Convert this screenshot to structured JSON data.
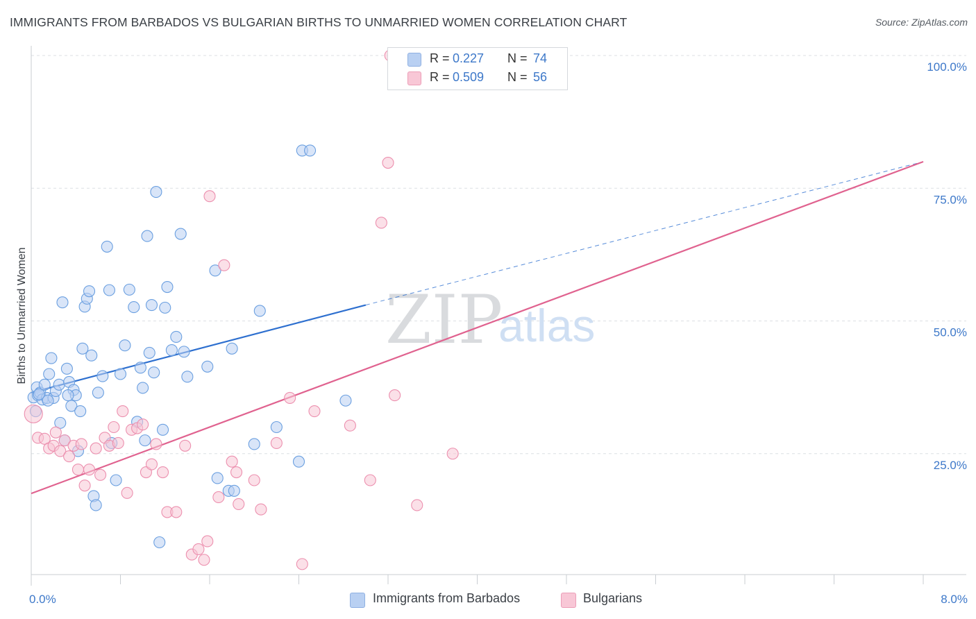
{
  "header": {
    "title": "IMMIGRANTS FROM BARBADOS VS BULGARIAN BIRTHS TO UNMARRIED WOMEN CORRELATION CHART",
    "source": "Source: ZipAtlas.com"
  },
  "watermark": {
    "zip": "ZIP",
    "atlas": "atlas"
  },
  "legend": {
    "rows": [
      {
        "r_key": "R =",
        "r_value": "0.227",
        "n_key": "N =",
        "n_value": "74"
      },
      {
        "r_key": "R =",
        "r_value": "0.509",
        "n_key": "N =",
        "n_value": "56"
      }
    ]
  },
  "colors": {
    "blue": "#6a9fe0",
    "blue_fill": "#b9d0f2",
    "blue_line": "#2d6fcf",
    "pink": "#ec8fae",
    "pink_fill": "#f8c7d6",
    "pink_line": "#e0628f",
    "tick_text": "#3d78c9",
    "grid": "#dcdfe3"
  },
  "chart_data": {
    "type": "scatter",
    "title": "IMMIGRANTS FROM BARBADOS VS BULGARIAN BIRTHS TO UNMARRIED WOMEN CORRELATION CHART",
    "xlabel": "",
    "ylabel": "Births to Unmarried Women",
    "xlim": [
      0,
      8
    ],
    "ylim": [
      0,
      102
    ],
    "x_tick_labels": [
      "0.0%",
      "8.0%"
    ],
    "y_ticks": [
      25,
      50,
      75,
      100
    ],
    "y_tick_labels": [
      "25.0%",
      "50.0%",
      "75.0%",
      "100.0%"
    ],
    "grid": true,
    "legend_position": "top-center",
    "series": [
      {
        "name": "Immigrants from Barbados",
        "color": "#6a9fe0",
        "R": 0.227,
        "N": 74,
        "trend": {
          "x": [
            0.0,
            3.0
          ],
          "y": [
            36.5,
            53.0
          ],
          "extended_to": [
            8.0,
            80.0
          ]
        },
        "points": [
          [
            0.02,
            35.6
          ],
          [
            0.04,
            33.0
          ],
          [
            0.05,
            37.5
          ],
          [
            0.06,
            36.0
          ],
          [
            0.08,
            36.5
          ],
          [
            0.1,
            35.2
          ],
          [
            0.12,
            38.0
          ],
          [
            0.14,
            35.5
          ],
          [
            0.16,
            40.0
          ],
          [
            0.18,
            43.0
          ],
          [
            0.2,
            35.5
          ],
          [
            0.22,
            36.8
          ],
          [
            0.25,
            38.0
          ],
          [
            0.26,
            30.8
          ],
          [
            0.28,
            53.5
          ],
          [
            0.3,
            27.5
          ],
          [
            0.32,
            41.0
          ],
          [
            0.34,
            38.5
          ],
          [
            0.36,
            34.0
          ],
          [
            0.38,
            37.0
          ],
          [
            0.4,
            36.0
          ],
          [
            0.42,
            25.5
          ],
          [
            0.44,
            33.0
          ],
          [
            0.46,
            44.8
          ],
          [
            0.48,
            52.7
          ],
          [
            0.5,
            54.2
          ],
          [
            0.52,
            55.6
          ],
          [
            0.54,
            43.5
          ],
          [
            0.56,
            17.0
          ],
          [
            0.58,
            15.3
          ],
          [
            0.6,
            36.5
          ],
          [
            0.64,
            39.6
          ],
          [
            0.68,
            64.0
          ],
          [
            0.7,
            55.8
          ],
          [
            0.72,
            27.0
          ],
          [
            0.76,
            20.0
          ],
          [
            0.8,
            40.0
          ],
          [
            0.84,
            45.4
          ],
          [
            0.88,
            55.9
          ],
          [
            0.92,
            52.6
          ],
          [
            0.95,
            31.0
          ],
          [
            0.98,
            41.2
          ],
          [
            1.0,
            37.4
          ],
          [
            1.02,
            27.5
          ],
          [
            1.04,
            66.0
          ],
          [
            1.06,
            44.0
          ],
          [
            1.08,
            53.0
          ],
          [
            1.1,
            40.3
          ],
          [
            1.12,
            74.3
          ],
          [
            1.15,
            8.3
          ],
          [
            1.18,
            29.5
          ],
          [
            1.2,
            52.5
          ],
          [
            1.22,
            56.4
          ],
          [
            1.26,
            44.5
          ],
          [
            1.3,
            47.0
          ],
          [
            1.34,
            66.4
          ],
          [
            1.37,
            44.2
          ],
          [
            1.4,
            39.5
          ],
          [
            1.58,
            41.4
          ],
          [
            1.65,
            59.5
          ],
          [
            1.67,
            20.4
          ],
          [
            1.77,
            18.0
          ],
          [
            1.8,
            44.8
          ],
          [
            1.82,
            18.0
          ],
          [
            2.0,
            26.8
          ],
          [
            2.05,
            51.9
          ],
          [
            2.2,
            30.0
          ],
          [
            2.4,
            23.5
          ],
          [
            2.43,
            82.1
          ],
          [
            2.5,
            82.1
          ],
          [
            2.82,
            35.0
          ],
          [
            0.07,
            36.2
          ],
          [
            0.15,
            35.0
          ],
          [
            0.33,
            36.0
          ]
        ]
      },
      {
        "name": "Bulgarians",
        "color": "#ec8fae",
        "R": 0.509,
        "N": 56,
        "trend": {
          "x": [
            0.0,
            8.0
          ],
          "y": [
            17.5,
            80.0
          ]
        },
        "points": [
          [
            0.02,
            32.5
          ],
          [
            0.06,
            28.0
          ],
          [
            0.12,
            27.8
          ],
          [
            0.16,
            26.0
          ],
          [
            0.2,
            26.5
          ],
          [
            0.22,
            29.0
          ],
          [
            0.26,
            25.5
          ],
          [
            0.3,
            27.5
          ],
          [
            0.34,
            24.5
          ],
          [
            0.38,
            26.5
          ],
          [
            0.42,
            22.0
          ],
          [
            0.45,
            26.8
          ],
          [
            0.48,
            19.0
          ],
          [
            0.52,
            22.0
          ],
          [
            0.58,
            26.0
          ],
          [
            0.62,
            21.0
          ],
          [
            0.66,
            28.0
          ],
          [
            0.7,
            26.5
          ],
          [
            0.74,
            30.0
          ],
          [
            0.78,
            27.0
          ],
          [
            0.82,
            33.0
          ],
          [
            0.86,
            17.6
          ],
          [
            0.9,
            29.5
          ],
          [
            0.95,
            29.8
          ],
          [
            1.0,
            30.5
          ],
          [
            1.03,
            21.5
          ],
          [
            1.08,
            23.0
          ],
          [
            1.12,
            26.8
          ],
          [
            1.18,
            21.5
          ],
          [
            1.22,
            14.0
          ],
          [
            1.3,
            14.0
          ],
          [
            1.38,
            26.5
          ],
          [
            1.44,
            6.0
          ],
          [
            1.5,
            7.0
          ],
          [
            1.55,
            5.0
          ],
          [
            1.58,
            8.5
          ],
          [
            1.6,
            73.5
          ],
          [
            1.68,
            16.8
          ],
          [
            1.73,
            60.5
          ],
          [
            1.8,
            23.5
          ],
          [
            1.84,
            21.5
          ],
          [
            1.86,
            15.5
          ],
          [
            2.0,
            20.0
          ],
          [
            2.06,
            14.5
          ],
          [
            2.2,
            27.0
          ],
          [
            2.32,
            35.5
          ],
          [
            2.43,
            4.2
          ],
          [
            2.54,
            33.0
          ],
          [
            2.86,
            30.3
          ],
          [
            3.04,
            20.0
          ],
          [
            3.14,
            68.5
          ],
          [
            3.2,
            79.8
          ],
          [
            3.22,
            100.0
          ],
          [
            3.26,
            36.0
          ],
          [
            3.46,
            15.3
          ],
          [
            3.78,
            25.0
          ]
        ]
      }
    ]
  },
  "bottom_legend": {
    "items": [
      {
        "label": "Immigrants from Barbados"
      },
      {
        "label": "Bulgarians"
      }
    ]
  }
}
